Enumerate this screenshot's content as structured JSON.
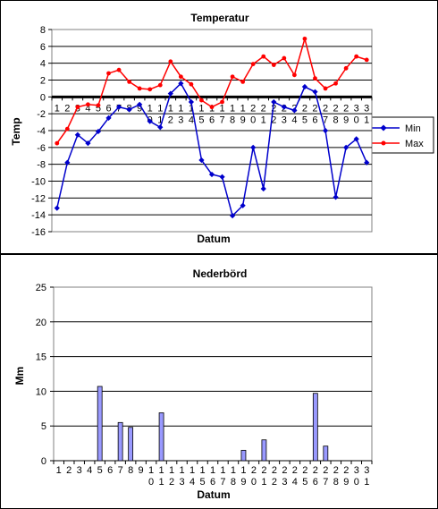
{
  "chart_data": [
    {
      "type": "line",
      "title": "Temperatur",
      "xlabel": "Datum",
      "ylabel": "Temp",
      "ylim": [
        -16,
        8
      ],
      "ytick_step": 2,
      "grid": true,
      "legend_position": "right",
      "x": [
        "1",
        "2",
        "3",
        "4",
        "5",
        "6",
        "7",
        "8",
        "9",
        "10",
        "11",
        "12",
        "13",
        "14",
        "15",
        "16",
        "17",
        "18",
        "19",
        "20",
        "21",
        "22",
        "23",
        "24",
        "25",
        "26",
        "27",
        "28",
        "29",
        "30",
        "31"
      ],
      "series": [
        {
          "name": "Min",
          "color": "#0000cc",
          "marker": "diamond",
          "values": [
            -13.2,
            -7.8,
            -4.5,
            -5.5,
            -4.1,
            -2.5,
            -1.2,
            -1.5,
            -0.9,
            -2.9,
            -3.6,
            0.4,
            1.6,
            -0.6,
            -7.5,
            -9.2,
            -9.5,
            -14.1,
            -12.9,
            -6.0,
            -10.9,
            -0.6,
            -1.2,
            -1.6,
            1.2,
            0.6,
            -4.0,
            -11.9,
            -6.0,
            -5.0,
            -7.8
          ]
        },
        {
          "name": "Max",
          "color": "#ff0000",
          "marker": "circle",
          "values": [
            -5.5,
            -3.8,
            -1.2,
            -0.9,
            -1.0,
            2.8,
            3.2,
            1.8,
            1.0,
            0.9,
            1.4,
            4.2,
            2.4,
            1.5,
            -0.4,
            -1.2,
            -0.6,
            2.4,
            1.8,
            3.9,
            4.8,
            3.8,
            4.6,
            2.6,
            6.9,
            2.2,
            1.0,
            1.6,
            3.4,
            4.8,
            4.4
          ]
        }
      ]
    },
    {
      "type": "bar",
      "title": "Nederbörd",
      "xlabel": "Datum",
      "ylabel": "Mm",
      "ylim": [
        0,
        25
      ],
      "ytick_step": 5,
      "grid": true,
      "bar_color": "#9999ff",
      "categories": [
        "1",
        "2",
        "3",
        "4",
        "5",
        "6",
        "7",
        "8",
        "9",
        "10",
        "11",
        "12",
        "13",
        "14",
        "15",
        "16",
        "17",
        "18",
        "19",
        "20",
        "21",
        "22",
        "23",
        "24",
        "25",
        "26",
        "27",
        "28",
        "29",
        "30",
        "31"
      ],
      "values": [
        0,
        0,
        0,
        0,
        10.7,
        0,
        5.5,
        4.8,
        0,
        0,
        6.9,
        0,
        0,
        0,
        0,
        0,
        0,
        0,
        1.5,
        0,
        3.0,
        0,
        0,
        0,
        0,
        9.7,
        2.1,
        0,
        0,
        0,
        0
      ]
    }
  ]
}
